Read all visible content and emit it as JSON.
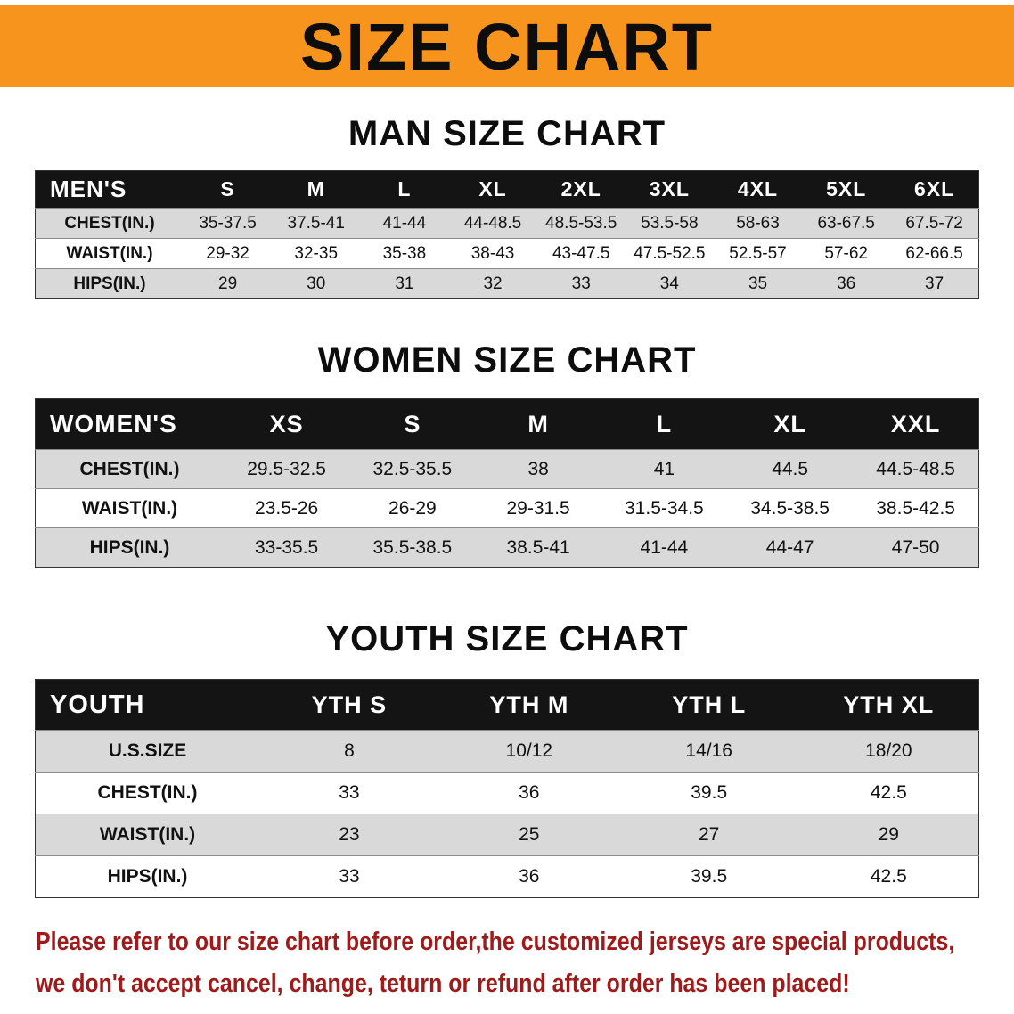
{
  "banner": {
    "title": "SIZE CHART",
    "bg": "#F7941E"
  },
  "style": {
    "table_header_bg": "#141414",
    "alt_row_bg": "#D9D9D9"
  },
  "sections": [
    {
      "heading": "MAN SIZE CHART",
      "table": {
        "header": [
          "MEN'S",
          "S",
          "M",
          "L",
          "XL",
          "2XL",
          "3XL",
          "4XL",
          "5XL",
          "6XL"
        ],
        "rows": [
          {
            "label": "CHEST(IN.)",
            "values": [
              "35-37.5",
              "37.5-41",
              "41-44",
              "44-48.5",
              "48.5-53.5",
              "53.5-58",
              "58-63",
              "63-67.5",
              "67.5-72"
            ]
          },
          {
            "label": "WAIST(IN.)",
            "values": [
              "29-32",
              "32-35",
              "35-38",
              "38-43",
              "43-47.5",
              "47.5-52.5",
              "52.5-57",
              "57-62",
              "62-66.5"
            ]
          },
          {
            "label": "HIPS(IN.)",
            "values": [
              "29",
              "30",
              "31",
              "32",
              "33",
              "34",
              "35",
              "36",
              "37"
            ]
          }
        ]
      }
    },
    {
      "heading": "WOMEN SIZE CHART",
      "table": {
        "header": [
          "WOMEN'S",
          "XS",
          "S",
          "M",
          "L",
          "XL",
          "XXL"
        ],
        "rows": [
          {
            "label": "CHEST(IN.)",
            "values": [
              "29.5-32.5",
              "32.5-35.5",
              "38",
              "41",
              "44.5",
              "44.5-48.5"
            ]
          },
          {
            "label": "WAIST(IN.)",
            "values": [
              "23.5-26",
              "26-29",
              "29-31.5",
              "31.5-34.5",
              "34.5-38.5",
              "38.5-42.5"
            ]
          },
          {
            "label": "HIPS(IN.)",
            "values": [
              "33-35.5",
              "35.5-38.5",
              "38.5-41",
              "41-44",
              "44-47",
              "47-50"
            ]
          }
        ]
      }
    },
    {
      "heading": "YOUTH SIZE CHART",
      "table": {
        "header": [
          "YOUTH",
          "YTH S",
          "YTH M",
          "YTH L",
          "YTH XL"
        ],
        "rows": [
          {
            "label": "U.S.SIZE",
            "values": [
              "8",
              "10/12",
              "14/16",
              "18/20"
            ]
          },
          {
            "label": "CHEST(IN.)",
            "values": [
              "33",
              "36",
              "39.5",
              "42.5"
            ]
          },
          {
            "label": "WAIST(IN.)",
            "values": [
              "23",
              "25",
              "27",
              "29"
            ]
          },
          {
            "label": "HIPS(IN.)",
            "values": [
              "33",
              "36",
              "39.5",
              "42.5"
            ]
          }
        ]
      }
    }
  ],
  "footer": {
    "color": "#9E1B1B",
    "lines": [
      "Please refer to our size chart before order,the customized jerseys are special products,",
      "we don't accept cancel, change, teturn or refund after order has been placed!"
    ]
  }
}
